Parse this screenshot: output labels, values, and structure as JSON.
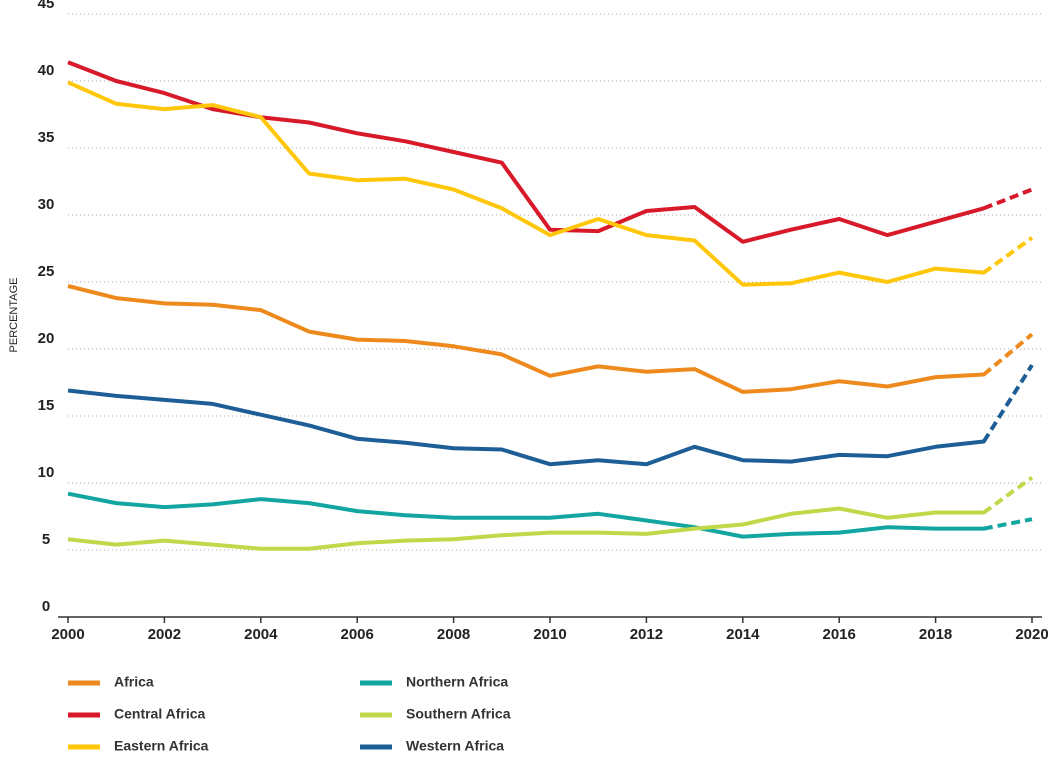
{
  "chart_data": {
    "type": "line",
    "y_label": "PERCENTAGE",
    "x": [
      2000,
      2001,
      2002,
      2003,
      2004,
      2005,
      2006,
      2007,
      2008,
      2009,
      2010,
      2011,
      2012,
      2013,
      2014,
      2015,
      2016,
      2017,
      2018,
      2019,
      2020
    ],
    "xlim": [
      2000,
      2020
    ],
    "xticks": [
      2000,
      2002,
      2004,
      2006,
      2008,
      2010,
      2012,
      2014,
      2016,
      2018,
      2020
    ],
    "ylim": [
      0,
      45
    ],
    "yticks": [
      0,
      5,
      10,
      15,
      20,
      25,
      30,
      35,
      40,
      45
    ],
    "grid": true,
    "last_segment_dashed": true,
    "series": [
      {
        "name": "Africa",
        "color": "#ee8a1d",
        "values": [
          24.7,
          23.8,
          23.4,
          23.3,
          22.9,
          21.3,
          20.7,
          20.6,
          20.2,
          19.6,
          18.0,
          18.7,
          18.3,
          18.5,
          16.8,
          17.0,
          17.6,
          17.2,
          17.9,
          18.1,
          21.1
        ]
      },
      {
        "name": "Central Africa",
        "color": "#d7192a",
        "values": [
          41.4,
          40.0,
          39.1,
          37.9,
          37.3,
          36.9,
          36.1,
          35.5,
          34.7,
          33.9,
          28.9,
          28.8,
          30.3,
          30.6,
          28.0,
          28.9,
          29.7,
          28.5,
          29.5,
          30.5,
          31.9
        ]
      },
      {
        "name": "Eastern Africa",
        "color": "#ffc709",
        "values": [
          39.9,
          38.3,
          37.9,
          38.2,
          37.3,
          33.1,
          32.6,
          32.7,
          31.9,
          30.5,
          28.5,
          29.7,
          28.5,
          28.1,
          24.8,
          24.9,
          25.7,
          25.0,
          26.0,
          25.7,
          28.3
        ]
      },
      {
        "name": "Northern Africa",
        "color": "#13a6a1",
        "values": [
          9.2,
          8.5,
          8.2,
          8.4,
          8.8,
          8.5,
          7.9,
          7.6,
          7.4,
          7.4,
          7.4,
          7.7,
          7.2,
          6.7,
          6.0,
          6.2,
          6.3,
          6.7,
          6.6,
          6.6,
          7.3
        ]
      },
      {
        "name": "Southern Africa",
        "color": "#bfd94a",
        "values": [
          5.8,
          5.4,
          5.7,
          5.4,
          5.1,
          5.1,
          5.5,
          5.7,
          5.8,
          6.1,
          6.3,
          6.3,
          6.2,
          6.6,
          6.9,
          7.7,
          8.1,
          7.4,
          7.8,
          7.8,
          10.4
        ]
      },
      {
        "name": "Western Africa",
        "color": "#1e5e96",
        "values": [
          16.9,
          16.5,
          16.2,
          15.9,
          15.1,
          14.3,
          13.3,
          13.0,
          12.6,
          12.5,
          11.4,
          11.7,
          11.4,
          12.7,
          11.7,
          11.6,
          12.1,
          12.0,
          12.7,
          13.1,
          18.8
        ]
      }
    ]
  }
}
